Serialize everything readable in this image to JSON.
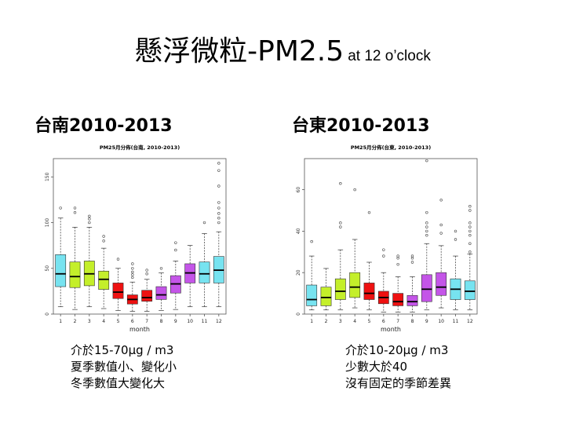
{
  "title": {
    "main": "懸浮微粒-PM2.5",
    "sub": "at 12 o’clock"
  },
  "chart_data": [
    {
      "type": "boxplot",
      "heading": "台南2010-2013",
      "title": "PM25月分佈(台南, 2010-2013)",
      "xlabel": "month",
      "ylabel": "",
      "ylim": [
        0,
        170
      ],
      "yticks": [
        0,
        50,
        100,
        150
      ],
      "categories": [
        "1",
        "2",
        "3",
        "4",
        "5",
        "6",
        "7",
        "8",
        "9",
        "10",
        "11",
        "12"
      ],
      "colors": [
        "#77e3f0",
        "#c4ef2a",
        "#c4ef2a",
        "#c4ef2a",
        "#ee1111",
        "#ee1111",
        "#ee1111",
        "#c455e8",
        "#c455e8",
        "#c455e8",
        "#77e3f0",
        "#77e3f0"
      ],
      "boxes": [
        {
          "month": "1",
          "whisker_low": 8,
          "q1": 30,
          "median": 44,
          "q3": 65,
          "whisker_high": 105
        },
        {
          "month": "2",
          "whisker_low": 5,
          "q1": 29,
          "median": 41,
          "q3": 57,
          "whisker_high": 95
        },
        {
          "month": "3",
          "whisker_low": 8,
          "q1": 31,
          "median": 44,
          "q3": 58,
          "whisker_high": 95
        },
        {
          "month": "4",
          "whisker_low": 6,
          "q1": 27,
          "median": 38,
          "q3": 47,
          "whisker_high": 72
        },
        {
          "month": "5",
          "whisker_low": 4,
          "q1": 17,
          "median": 24,
          "q3": 34,
          "whisker_high": 50
        },
        {
          "month": "6",
          "whisker_low": 3,
          "q1": 11,
          "median": 16,
          "q3": 21,
          "whisker_high": 35
        },
        {
          "month": "7",
          "whisker_low": 3,
          "q1": 14,
          "median": 18,
          "q3": 26,
          "whisker_high": 38
        },
        {
          "month": "8",
          "whisker_low": 4,
          "q1": 16,
          "median": 21,
          "q3": 30,
          "whisker_high": 45
        },
        {
          "month": "9",
          "whisker_low": 5,
          "q1": 23,
          "median": 33,
          "q3": 42,
          "whisker_high": 58
        },
        {
          "month": "10",
          "whisker_low": 8,
          "q1": 34,
          "median": 45,
          "q3": 55,
          "whisker_high": 75
        },
        {
          "month": "11",
          "whisker_low": 8,
          "q1": 34,
          "median": 44,
          "q3": 57,
          "whisker_high": 88
        },
        {
          "month": "12",
          "whisker_low": 8,
          "q1": 34,
          "median": 48,
          "q3": 63,
          "whisker_high": 90
        }
      ],
      "outliers": [
        {
          "month": "1",
          "values": [
            116
          ]
        },
        {
          "month": "2",
          "values": [
            111,
            116
          ]
        },
        {
          "month": "3",
          "values": [
            100,
            104,
            107
          ]
        },
        {
          "month": "4",
          "values": [
            80,
            85
          ]
        },
        {
          "month": "5",
          "values": [
            60
          ]
        },
        {
          "month": "6",
          "values": [
            40,
            43,
            46,
            50,
            55
          ]
        },
        {
          "month": "7",
          "values": [
            44,
            48
          ]
        },
        {
          "month": "8",
          "values": [
            50
          ]
        },
        {
          "month": "9",
          "values": [
            70,
            78
          ]
        },
        {
          "month": "11",
          "values": [
            100
          ]
        },
        {
          "month": "12",
          "values": [
            100,
            105,
            110,
            116,
            122,
            140,
            157,
            165
          ]
        }
      ],
      "notes": [
        "介於15-70μg / m3",
        "夏季數值小、變化小",
        "冬季數值大變化大"
      ]
    },
    {
      "type": "boxplot",
      "heading": "台東2010-2013",
      "title": "PM25月分佈(台東, 2010-2013)",
      "xlabel": "month",
      "ylabel": "",
      "ylim": [
        0,
        75
      ],
      "yticks": [
        0,
        20,
        40,
        60
      ],
      "categories": [
        "1",
        "2",
        "3",
        "4",
        "5",
        "6",
        "7",
        "8",
        "9",
        "10",
        "11",
        "12"
      ],
      "colors": [
        "#77e3f0",
        "#c4ef2a",
        "#c4ef2a",
        "#c4ef2a",
        "#ee1111",
        "#ee1111",
        "#ee1111",
        "#c455e8",
        "#c455e8",
        "#c455e8",
        "#77e3f0",
        "#77e3f0"
      ],
      "boxes": [
        {
          "month": "1",
          "whisker_low": 2,
          "q1": 4,
          "median": 7,
          "q3": 14,
          "whisker_high": 28
        },
        {
          "month": "2",
          "whisker_low": 2,
          "q1": 4,
          "median": 8,
          "q3": 13,
          "whisker_high": 22
        },
        {
          "month": "3",
          "whisker_low": 2,
          "q1": 7,
          "median": 11,
          "q3": 17,
          "whisker_high": 31
        },
        {
          "month": "4",
          "whisker_low": 3,
          "q1": 8,
          "median": 13,
          "q3": 20,
          "whisker_high": 36
        },
        {
          "month": "5",
          "whisker_low": 2,
          "q1": 7,
          "median": 10,
          "q3": 15,
          "whisker_high": 25
        },
        {
          "month": "6",
          "whisker_low": 1,
          "q1": 5,
          "median": 8,
          "q3": 11,
          "whisker_high": 20
        },
        {
          "month": "7",
          "whisker_low": 1,
          "q1": 4,
          "median": 6,
          "q3": 10,
          "whisker_high": 18
        },
        {
          "month": "8",
          "whisker_low": 1,
          "q1": 4,
          "median": 6,
          "q3": 9,
          "whisker_high": 18
        },
        {
          "month": "9",
          "whisker_low": 2,
          "q1": 6,
          "median": 12,
          "q3": 19,
          "whisker_high": 34
        },
        {
          "month": "10",
          "whisker_low": 3,
          "q1": 9,
          "median": 13,
          "q3": 20,
          "whisker_high": 33
        },
        {
          "month": "11",
          "whisker_low": 2,
          "q1": 7,
          "median": 12,
          "q3": 17,
          "whisker_high": 28
        },
        {
          "month": "12",
          "whisker_low": 2,
          "q1": 7,
          "median": 11,
          "q3": 16,
          "whisker_high": 29
        }
      ],
      "outliers": [
        {
          "month": "1",
          "values": [
            35
          ]
        },
        {
          "month": "3",
          "values": [
            42,
            44,
            63
          ]
        },
        {
          "month": "4",
          "values": [
            60
          ]
        },
        {
          "month": "5",
          "values": [
            49
          ]
        },
        {
          "month": "6",
          "values": [
            28,
            31
          ]
        },
        {
          "month": "7",
          "values": [
            24,
            27,
            28
          ]
        },
        {
          "month": "8",
          "values": [
            25,
            27,
            28
          ]
        },
        {
          "month": "9",
          "values": [
            38,
            40,
            42,
            44,
            49,
            74
          ]
        },
        {
          "month": "10",
          "values": [
            39,
            43,
            55
          ]
        },
        {
          "month": "11",
          "values": [
            36,
            40
          ]
        },
        {
          "month": "12",
          "values": [
            30,
            34,
            38,
            40,
            42,
            44,
            50,
            52
          ]
        }
      ],
      "notes": [
        "介於10-20μg / m3",
        "少數大於40",
        "沒有固定的季節差異"
      ]
    }
  ]
}
